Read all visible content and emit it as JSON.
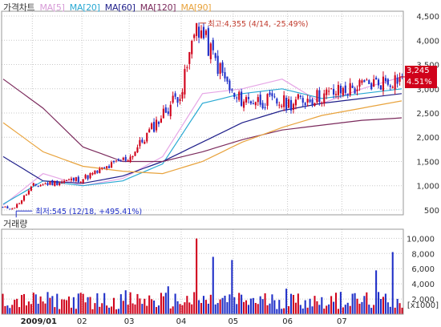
{
  "header": {
    "title": "가격차트",
    "legend": [
      {
        "label": "MA[5]",
        "color": "#e6a6e6"
      },
      {
        "label": "MA[20]",
        "color": "#29a9d3"
      },
      {
        "label": "MA[60]",
        "color": "#1f1f8a"
      },
      {
        "label": "MA[120]",
        "color": "#7b2a5c"
      },
      {
        "label": "MA[90]",
        "color": "#e8a33d"
      }
    ]
  },
  "annotations": {
    "high": "최고:4,355 (4/14, -25.49%)",
    "low": "최저:545 (12/18, +495.41%)"
  },
  "last_price": {
    "price": "3,245",
    "change": "4.51%"
  },
  "volume": {
    "title": "거래량",
    "unit": "[x1000]"
  },
  "colors": {
    "up": "#d0021b",
    "down": "#1f2fc8",
    "bg": "#ffffff",
    "grid": "#c8c8c8"
  },
  "chart_data": [
    {
      "type": "candlestick",
      "title": "가격차트",
      "x_tick_labels": [
        "2009/01",
        "02",
        "03",
        "04",
        "05",
        "06",
        "07"
      ],
      "y_ticks": [
        500,
        1000,
        1500,
        2000,
        2500,
        3000,
        3500,
        4000,
        4500
      ],
      "y_tick_labels": [
        "500",
        "1,000",
        "1,500",
        "2,000",
        "2,500",
        "3,000",
        "3,500",
        "4,000",
        "4,500"
      ],
      "ylim": [
        400,
        4600
      ],
      "grid": true,
      "monthly_close_path": [
        {
          "period": "12/18",
          "value": 545
        },
        {
          "period": "2009/01",
          "value": 1000
        },
        {
          "period": "02",
          "value": 1150
        },
        {
          "period": "03",
          "value": 1600
        },
        {
          "period": "04",
          "value": 3000
        },
        {
          "period": "4/14",
          "value": 4355
        },
        {
          "period": "05",
          "value": 2800
        },
        {
          "period": "06",
          "value": 2700
        },
        {
          "period": "07",
          "value": 3245
        }
      ],
      "high": 4355,
      "low": 545,
      "last": 3245,
      "series": [
        {
          "name": "MA[5]",
          "approx_values": [
            600,
            1250,
            1000,
            1150,
            1600,
            2900,
            3000,
            3200,
            2700,
            3000,
            3245
          ]
        },
        {
          "name": "MA[20]",
          "approx_values": [
            620,
            1100,
            1000,
            1100,
            1450,
            2700,
            2900,
            3000,
            2800,
            2900,
            3000
          ]
        },
        {
          "name": "MA[60]",
          "approx_values": [
            1600,
            1100,
            1050,
            1200,
            1500,
            1900,
            2300,
            2550,
            2700,
            2800,
            2900
          ]
        },
        {
          "name": "MA[120]",
          "approx_values": [
            3200,
            2600,
            1800,
            1500,
            1500,
            1700,
            1950,
            2150,
            2250,
            2350,
            2400
          ]
        },
        {
          "name": "MA[90]",
          "approx_values": [
            2300,
            1700,
            1400,
            1300,
            1250,
            1500,
            1900,
            2200,
            2450,
            2600,
            2750
          ]
        }
      ]
    },
    {
      "type": "bar",
      "title": "거래량",
      "y_ticks": [
        2000,
        4000,
        6000,
        8000,
        10000
      ],
      "y_tick_labels": [
        "2,000",
        "4,000",
        "6,000",
        "8,000",
        "10,000"
      ],
      "ylim": [
        0,
        11200
      ],
      "unit": "[x1000]",
      "max_volume": 10500,
      "grid": true
    }
  ]
}
